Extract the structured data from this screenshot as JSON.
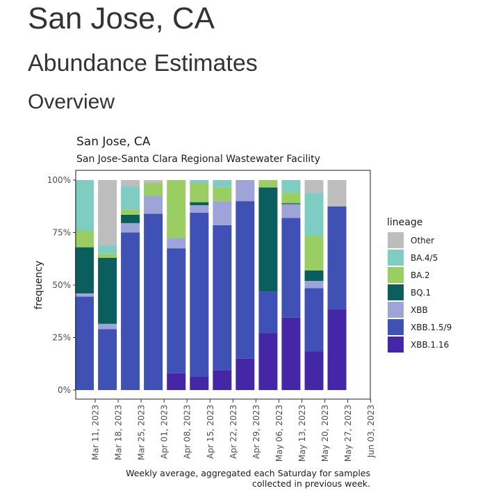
{
  "page": {
    "title": "San Jose, CA",
    "section": "Abundance Estimates",
    "subsection": "Overview"
  },
  "chart_data": {
    "type": "bar",
    "stacked": true,
    "title": "San Jose, CA",
    "subtitle": "San Jose-Santa Clara Regional Wastewater Facility",
    "xlabel": "",
    "ylabel": "frequency",
    "caption_lines": [
      "Weekly average, aggregated each Saturday for samples",
      "collected in previous week."
    ],
    "ylim": [
      0,
      100
    ],
    "yticks": [
      "0%",
      "25%",
      "50%",
      "75%",
      "100%"
    ],
    "ytick_values": [
      0,
      25,
      50,
      75,
      100
    ],
    "xticks": [
      "Mar 11, 2023",
      "Mar 18, 2023",
      "Mar 25, 2023",
      "Apr 01, 2023",
      "Apr 08, 2023",
      "Apr 15, 2023",
      "Apr 22, 2023",
      "Apr 29, 2023",
      "May 06, 2023",
      "May 13, 2023",
      "May 20, 2023",
      "May 27, 2023",
      "Jun 03, 2023"
    ],
    "categories": [
      "Mar 11, 2023",
      "Mar 18, 2023",
      "Mar 25, 2023",
      "Apr 01, 2023",
      "Apr 08, 2023",
      "Apr 15, 2023",
      "Apr 22, 2023",
      "Apr 29, 2023",
      "May 06, 2023",
      "May 13, 2023",
      "May 20, 2023",
      "May 27, 2023"
    ],
    "legend_title": "lineage",
    "legend_position": "right",
    "grid": false,
    "series": [
      {
        "name": "XBB.1.16",
        "color": "#4526a6",
        "values": [
          0,
          0,
          0,
          0,
          8,
          6.5,
          9.5,
          15,
          27,
          34.5,
          18.5,
          38.5
        ]
      },
      {
        "name": "XBB.1.5/9",
        "color": "#3f51b5",
        "values": [
          44.5,
          29,
          75,
          84,
          59.5,
          78,
          69,
          75,
          20,
          47.5,
          30,
          49
        ]
      },
      {
        "name": "XBB",
        "color": "#9ea4d8",
        "values": [
          1.5,
          2.5,
          4.5,
          8.5,
          5,
          3.5,
          11.5,
          10,
          0,
          6.5,
          3.5,
          0
        ]
      },
      {
        "name": "BQ.1",
        "color": "#0b5e5e",
        "values": [
          22,
          31.5,
          4,
          0,
          0,
          1.5,
          0,
          0,
          49.5,
          0.5,
          5,
          0
        ]
      },
      {
        "name": "BA.2",
        "color": "#9acd62",
        "values": [
          8,
          2,
          2.5,
          6,
          27.5,
          9,
          6.5,
          0,
          3.5,
          5,
          16.5,
          0
        ]
      },
      {
        "name": "BA.4/5",
        "color": "#7fcdc2",
        "values": [
          24,
          4,
          11,
          0,
          0,
          1.5,
          3.5,
          0,
          0,
          6,
          20.5,
          0
        ]
      },
      {
        "name": "Other",
        "color": "#bdbdbd",
        "values": [
          0,
          31,
          3,
          1.5,
          0,
          0,
          0,
          0,
          0,
          0,
          6,
          12.5
        ]
      }
    ],
    "legend_order": [
      "Other",
      "BA.4/5",
      "BA.2",
      "BQ.1",
      "XBB",
      "XBB.1.5/9",
      "XBB.1.16"
    ]
  }
}
